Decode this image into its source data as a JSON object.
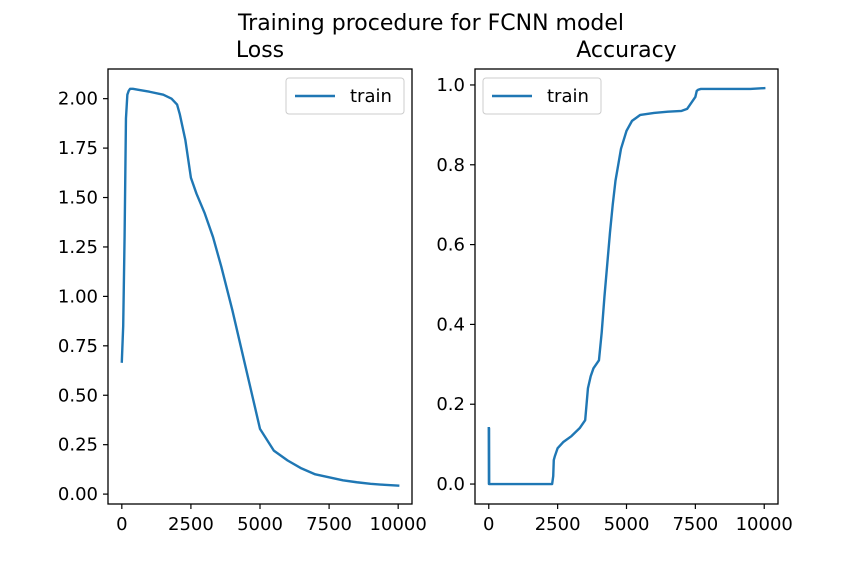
{
  "suptitle": "Training procedure for FCNN model",
  "chart_data": [
    {
      "type": "line",
      "title": "Loss",
      "xlabel": "",
      "ylabel": "",
      "xlim": [
        -500,
        10500
      ],
      "ylim": [
        -0.05,
        2.15
      ],
      "xticks": [
        0,
        2500,
        5000,
        7500,
        10000
      ],
      "xtick_labels": [
        "0",
        "2500",
        "5000",
        "7500",
        "10000"
      ],
      "yticks": [
        0.0,
        0.25,
        0.5,
        0.75,
        1.0,
        1.25,
        1.5,
        1.75,
        2.0
      ],
      "ytick_labels": [
        "0.00",
        "0.25",
        "0.50",
        "0.75",
        "1.00",
        "1.25",
        "1.50",
        "1.75",
        "2.00"
      ],
      "grid": false,
      "legend": "upper-right",
      "series": [
        {
          "name": "train",
          "color": "#1f77b4",
          "x": [
            0,
            50,
            100,
            150,
            200,
            250,
            300,
            400,
            600,
            1000,
            1500,
            1800,
            2000,
            2100,
            2300,
            2500,
            2700,
            3000,
            3300,
            3600,
            4000,
            4300,
            4600,
            5000,
            5500,
            6000,
            6500,
            7000,
            7500,
            8000,
            8500,
            9000,
            9500,
            10000
          ],
          "y": [
            0.67,
            0.85,
            1.3,
            1.9,
            2.02,
            2.04,
            2.05,
            2.05,
            2.045,
            2.035,
            2.02,
            2.0,
            1.97,
            1.92,
            1.79,
            1.6,
            1.52,
            1.42,
            1.3,
            1.15,
            0.93,
            0.75,
            0.57,
            0.33,
            0.22,
            0.17,
            0.13,
            0.1,
            0.085,
            0.07,
            0.06,
            0.052,
            0.047,
            0.043
          ]
        }
      ]
    },
    {
      "type": "line",
      "title": "Accuracy",
      "xlabel": "",
      "ylabel": "",
      "xlim": [
        -500,
        10500
      ],
      "ylim": [
        -0.05,
        1.04
      ],
      "xticks": [
        0,
        2500,
        5000,
        7500,
        10000
      ],
      "xtick_labels": [
        "0",
        "2500",
        "5000",
        "7500",
        "10000"
      ],
      "yticks": [
        0.0,
        0.2,
        0.4,
        0.6,
        0.8,
        1.0
      ],
      "ytick_labels": [
        "0.0",
        "0.2",
        "0.4",
        "0.6",
        "0.8",
        "1.0"
      ],
      "grid": false,
      "legend": "upper-left",
      "series": [
        {
          "name": "train",
          "color": "#1f77b4",
          "x": [
            0,
            5,
            10,
            15,
            20,
            50,
            500,
            1000,
            1500,
            2000,
            2300,
            2340,
            2360,
            2400,
            2500,
            2700,
            3000,
            3300,
            3500,
            3550,
            3600,
            3700,
            3800,
            3900,
            4000,
            4100,
            4200,
            4300,
            4400,
            4500,
            4600,
            4700,
            4800,
            5000,
            5200,
            5500,
            6000,
            6500,
            7000,
            7200,
            7400,
            7500,
            7550,
            7600,
            7700,
            8000,
            8500,
            9000,
            9500,
            10000
          ],
          "y": [
            0.14,
            0.0,
            0.14,
            0.0,
            0.0,
            0.0,
            0.0,
            0.0,
            0.0,
            0.0,
            0.0,
            0.02,
            0.06,
            0.07,
            0.09,
            0.105,
            0.12,
            0.14,
            0.16,
            0.2,
            0.24,
            0.27,
            0.29,
            0.3,
            0.31,
            0.38,
            0.47,
            0.55,
            0.63,
            0.7,
            0.76,
            0.8,
            0.84,
            0.885,
            0.91,
            0.925,
            0.93,
            0.933,
            0.935,
            0.94,
            0.96,
            0.97,
            0.985,
            0.988,
            0.99,
            0.99,
            0.99,
            0.99,
            0.99,
            0.992
          ]
        }
      ]
    }
  ]
}
